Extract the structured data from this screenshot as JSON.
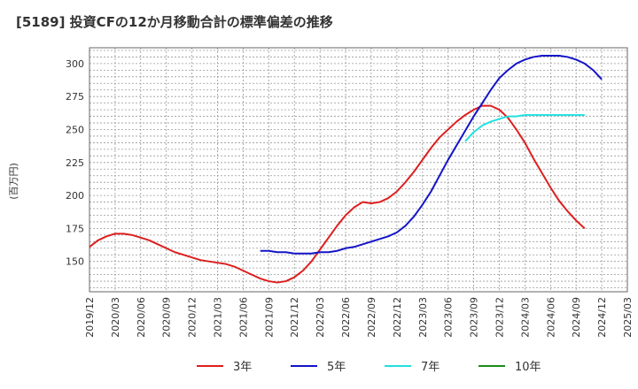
{
  "chart_data": {
    "type": "line",
    "title": "[5189]  投資CFの12か月移動合計の標準偏差の推移",
    "ylabel": "(百万円)",
    "xlabel": "",
    "ylim": [
      127,
      312
    ],
    "yticks": [
      150,
      175,
      200,
      225,
      250,
      275,
      300
    ],
    "x_ticks": [
      "2019/12",
      "2020/03",
      "2020/06",
      "2020/09",
      "2020/12",
      "2021/03",
      "2021/06",
      "2021/09",
      "2021/12",
      "2022/03",
      "2022/06",
      "2022/09",
      "2022/12",
      "2023/03",
      "2023/06",
      "2023/09",
      "2023/12",
      "2024/03",
      "2024/06",
      "2024/09",
      "2024/12",
      "2025/03"
    ],
    "grid": true,
    "legend_position": "bottom",
    "series": [
      {
        "name": "3年",
        "color": "#dd1f1f",
        "start": "2019/12",
        "values": [
          161,
          166,
          169,
          171,
          171,
          170,
          168,
          166,
          163,
          160,
          157,
          155,
          153,
          151,
          150,
          149,
          148,
          146,
          143,
          140,
          137,
          135,
          134,
          135,
          138,
          143,
          150,
          159,
          168,
          177,
          185,
          191,
          195,
          194,
          195,
          198,
          203,
          210,
          218,
          227,
          236,
          244,
          250,
          256,
          261,
          265,
          268,
          268,
          265,
          259,
          250,
          240,
          228,
          217,
          206,
          196,
          188,
          181,
          175
        ]
      },
      {
        "name": "5年",
        "color": "#1414c8",
        "start": "2021/08",
        "values": [
          158,
          158,
          157,
          157,
          156,
          156,
          156,
          157,
          157,
          158,
          160,
          161,
          163,
          165,
          167,
          169,
          172,
          177,
          184,
          193,
          203,
          215,
          227,
          238,
          249,
          260,
          270,
          280,
          289,
          295,
          300,
          303,
          305,
          306,
          306,
          306,
          305,
          303,
          300,
          295,
          288
        ]
      },
      {
        "name": "7年",
        "color": "#22e0e0",
        "start": "2023/08",
        "values": [
          241,
          248,
          253,
          256,
          258,
          260,
          260,
          261,
          261,
          261,
          261,
          261,
          261,
          261,
          261
        ]
      },
      {
        "name": "10年",
        "color": "#1a8c1a",
        "start": "2019/12",
        "values": []
      }
    ]
  }
}
